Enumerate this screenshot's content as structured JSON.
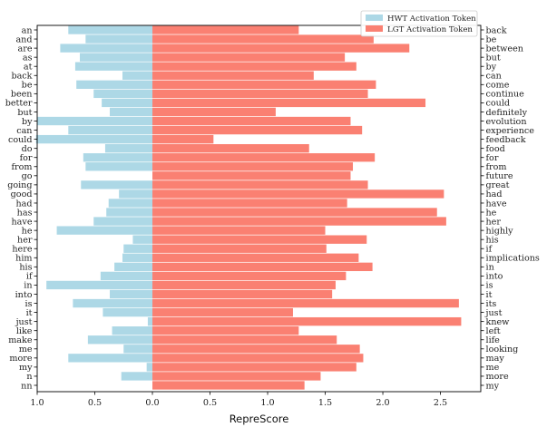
{
  "chart_data": {
    "type": "bar",
    "orientation": "horizontal",
    "xlabel": "RepreScore",
    "xticks": [
      "1.0",
      "0.5",
      "0.0",
      "0.5",
      "1.0",
      "1.5",
      "2.0",
      "2.5"
    ],
    "xtick_values": [
      -1.0,
      -0.5,
      0.0,
      0.5,
      1.0,
      1.5,
      2.0,
      2.5
    ],
    "xlim": [
      -1.0,
      2.85
    ],
    "legend_location": "top-right",
    "colors": {
      "hwt": "#add8e6",
      "lgt": "#fa8072",
      "axis": "#000000"
    },
    "series": [
      {
        "name": "HWT Activation Token",
        "categories": [
          "an",
          "and",
          "are",
          "as",
          "at",
          "back",
          "be",
          "been",
          "better",
          "but",
          "by",
          "can",
          "could",
          "do",
          "for",
          "from",
          "go",
          "going",
          "good",
          "had",
          "has",
          "have",
          "he",
          "her",
          "here",
          "him",
          "his",
          "if",
          "in",
          "into",
          "is",
          "it",
          "just",
          "like",
          "make",
          "me",
          "more",
          "my",
          "n",
          "nn"
        ],
        "values": [
          0.73,
          0.58,
          0.8,
          0.63,
          0.67,
          0.26,
          0.66,
          0.51,
          0.44,
          0.37,
          1.0,
          0.73,
          1.01,
          0.41,
          0.6,
          0.58,
          0.0,
          0.62,
          0.29,
          0.38,
          0.4,
          0.51,
          0.83,
          0.17,
          0.25,
          0.26,
          0.33,
          0.45,
          0.92,
          0.37,
          0.69,
          0.43,
          0.04,
          0.35,
          0.56,
          0.25,
          0.73,
          0.05,
          0.27,
          0.0
        ]
      },
      {
        "name": "LGT Activation Token",
        "categories": [
          "back",
          "be",
          "between",
          "but",
          "by",
          "can",
          "come",
          "continue",
          "could",
          "definitely",
          "evolution",
          "experience",
          "feedback",
          "food",
          "for",
          "from",
          "future",
          "great",
          "had",
          "have",
          "he",
          "her",
          "highly",
          "his",
          "if",
          "implications",
          "in",
          "into",
          "is",
          "it",
          "its",
          "just",
          "knew",
          "left",
          "life",
          "looking",
          "may",
          "me",
          "more",
          "my"
        ],
        "values": [
          1.27,
          1.92,
          2.23,
          1.67,
          1.77,
          1.4,
          1.94,
          1.87,
          2.37,
          1.07,
          1.72,
          1.82,
          0.53,
          1.36,
          1.93,
          1.74,
          1.72,
          1.87,
          2.53,
          1.69,
          2.47,
          2.55,
          1.5,
          1.86,
          1.51,
          1.79,
          1.91,
          1.68,
          1.59,
          1.56,
          2.66,
          1.22,
          2.68,
          1.27,
          1.6,
          1.8,
          1.83,
          1.77,
          1.46,
          1.32
        ]
      }
    ]
  }
}
